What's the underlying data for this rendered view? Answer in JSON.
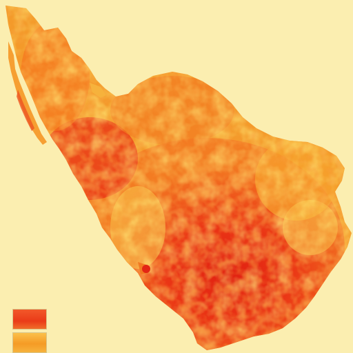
{
  "map": {
    "background_color": "#fbeeb0",
    "land_palette": [
      "#f9c74a",
      "#f6a12c",
      "#f27a22",
      "#ee4d1c",
      "#e32614"
    ]
  },
  "legend": {
    "title": "",
    "items": [
      {
        "label": "",
        "color": "#ee3f1a"
      },
      {
        "label": "",
        "color": "#f6a12c"
      }
    ]
  }
}
